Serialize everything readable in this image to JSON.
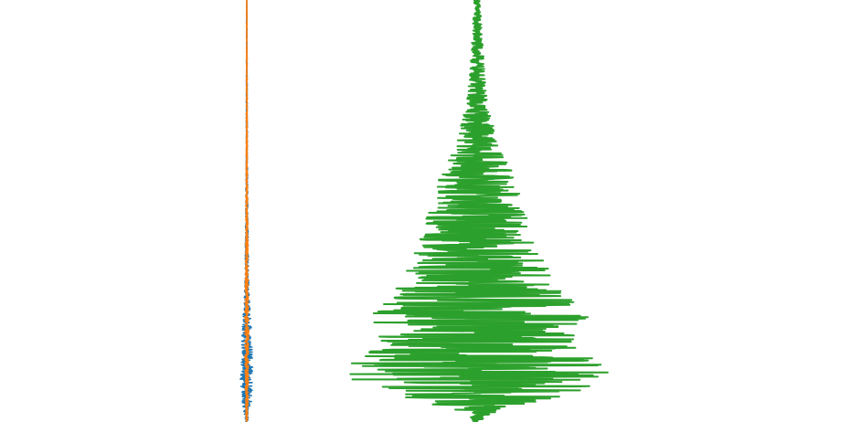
{
  "chart_data": {
    "type": "line",
    "orientation": "vertical-traces",
    "axes_visible": false,
    "grid": false,
    "legend": "none",
    "title": "",
    "xlabel": "",
    "ylabel": "",
    "x_range": [
      -1,
      1
    ],
    "y_range": [
      0,
      1
    ],
    "panels": [
      {
        "series": [
          {
            "color": "#1f77b4",
            "depth": [
              0.0,
              0.05,
              0.1,
              0.15,
              0.2,
              0.25,
              0.3,
              0.35,
              0.4,
              0.45,
              0.5,
              0.55,
              0.6,
              0.65,
              0.7,
              0.72,
              0.74,
              0.76,
              0.78,
              0.8,
              0.82,
              0.84,
              0.86,
              0.88,
              0.9,
              0.92,
              0.94,
              0.96,
              0.98,
              1.0
            ],
            "amplitude": [
              0.01,
              0.02,
              0.015,
              0.025,
              0.03,
              0.03,
              0.04,
              0.04,
              0.05,
              0.06,
              0.07,
              0.08,
              0.1,
              0.12,
              0.15,
              0.18,
              0.22,
              0.25,
              0.28,
              0.3,
              0.32,
              0.34,
              0.36,
              0.38,
              0.4,
              0.36,
              0.32,
              0.26,
              0.16,
              0.05
            ]
          },
          {
            "color": "#ff7f0e",
            "depth": [
              0.0,
              0.05,
              0.1,
              0.15,
              0.2,
              0.25,
              0.3,
              0.35,
              0.4,
              0.45,
              0.5,
              0.55,
              0.6,
              0.65,
              0.7,
              0.72,
              0.74,
              0.76,
              0.78,
              0.8,
              0.82,
              0.84,
              0.86,
              0.88,
              0.9,
              0.92,
              0.94,
              0.96,
              0.98,
              1.0
            ],
            "amplitude": [
              0.01,
              0.015,
              0.02,
              0.02,
              0.025,
              0.03,
              0.035,
              0.04,
              0.045,
              0.05,
              0.06,
              0.07,
              0.08,
              0.09,
              0.1,
              0.11,
              0.12,
              0.12,
              0.13,
              0.13,
              0.12,
              0.12,
              0.11,
              0.11,
              0.1,
              0.1,
              0.09,
              0.08,
              0.06,
              0.03
            ]
          }
        ]
      },
      {
        "series": [
          {
            "color": "#2ca02c",
            "depth": [
              0.0,
              0.05,
              0.1,
              0.15,
              0.2,
              0.25,
              0.3,
              0.35,
              0.4,
              0.45,
              0.5,
              0.55,
              0.6,
              0.65,
              0.7,
              0.72,
              0.74,
              0.76,
              0.78,
              0.8,
              0.82,
              0.84,
              0.86,
              0.88,
              0.9,
              0.92,
              0.94,
              0.96,
              0.98,
              1.0
            ],
            "amplitude": [
              0.02,
              0.03,
              0.04,
              0.05,
              0.06,
              0.08,
              0.12,
              0.15,
              0.25,
              0.3,
              0.35,
              0.4,
              0.45,
              0.55,
              0.65,
              0.75,
              0.8,
              0.85,
              0.75,
              0.7,
              0.72,
              0.8,
              0.9,
              0.95,
              1.0,
              0.85,
              0.6,
              0.3,
              0.1,
              0.02
            ]
          }
        ]
      }
    ]
  }
}
